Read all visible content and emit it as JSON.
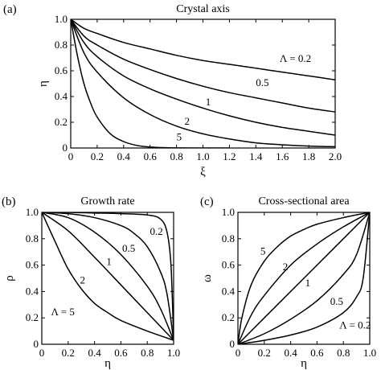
{
  "chart_data": [
    {
      "type": "line",
      "panel_label": "(a)",
      "title": "Crystal axis",
      "xlabel": "ξ",
      "ylabel": "η",
      "xlim": [
        0,
        2.0
      ],
      "ylim": [
        0,
        1.0
      ],
      "xticks": [
        "0",
        "0.2",
        "0.4",
        "0.6",
        "0.8",
        "1.0",
        "1.2",
        "1.4",
        "1.6",
        "1.8",
        "2.0"
      ],
      "yticks": [
        "0",
        "0.2",
        "0.4",
        "0.6",
        "0.8",
        "1.0"
      ],
      "series": [
        {
          "name": "Λ = 0.2",
          "x": [
            0,
            0.1,
            0.2,
            0.4,
            0.6,
            0.8,
            1.0,
            1.2,
            1.4,
            1.6,
            1.8,
            2.0
          ],
          "y": [
            1.0,
            0.93,
            0.89,
            0.82,
            0.77,
            0.72,
            0.68,
            0.65,
            0.62,
            0.59,
            0.56,
            0.53
          ]
        },
        {
          "name": "0.5",
          "x": [
            0,
            0.1,
            0.2,
            0.4,
            0.6,
            0.8,
            1.0,
            1.2,
            1.4,
            1.6,
            1.8,
            2.0
          ],
          "y": [
            1.0,
            0.87,
            0.8,
            0.69,
            0.61,
            0.54,
            0.48,
            0.43,
            0.39,
            0.35,
            0.31,
            0.28
          ]
        },
        {
          "name": "1",
          "x": [
            0,
            0.1,
            0.2,
            0.4,
            0.6,
            0.8,
            1.0,
            1.2,
            1.4,
            1.6,
            1.8,
            2.0
          ],
          "y": [
            1.0,
            0.82,
            0.71,
            0.56,
            0.46,
            0.38,
            0.31,
            0.25,
            0.2,
            0.16,
            0.13,
            0.1
          ]
        },
        {
          "name": "2",
          "x": [
            0,
            0.1,
            0.2,
            0.4,
            0.6,
            0.8,
            1.0,
            1.2,
            1.4,
            1.6,
            1.8,
            2.0
          ],
          "y": [
            1.0,
            0.74,
            0.59,
            0.39,
            0.26,
            0.17,
            0.11,
            0.07,
            0.04,
            0.025,
            0.015,
            0.01
          ]
        },
        {
          "name": "5",
          "x": [
            0,
            0.05,
            0.1,
            0.15,
            0.2,
            0.3,
            0.4,
            0.5,
            0.6,
            0.7,
            0.8,
            1.0,
            1.2
          ],
          "y": [
            1.0,
            0.72,
            0.5,
            0.35,
            0.24,
            0.11,
            0.05,
            0.02,
            0.008,
            0.003,
            0.001,
            0,
            0
          ]
        }
      ],
      "curve_labels": [
        {
          "text": "Λ = 0.2",
          "x": 1.58,
          "y": 0.67
        },
        {
          "text": "0.5",
          "x": 1.4,
          "y": 0.48
        },
        {
          "text": "1",
          "x": 1.02,
          "y": 0.33
        },
        {
          "text": "2",
          "x": 0.86,
          "y": 0.18
        },
        {
          "text": "5",
          "x": 0.8,
          "y": 0.06
        }
      ]
    },
    {
      "type": "line",
      "panel_label": "(b)",
      "title": "Growth rate",
      "xlabel": "η",
      "ylabel": "ρ",
      "xlim": [
        0,
        1.0
      ],
      "ylim": [
        0,
        1.0
      ],
      "xticks": [
        "0",
        "0.2",
        "0.4",
        "0.6",
        "0.8",
        "1.0"
      ],
      "yticks": [
        "0",
        "0.2",
        "0.4",
        "0.6",
        "0.8",
        "1.0"
      ],
      "series": [
        {
          "name": "0.2",
          "x": [
            0,
            0.2,
            0.4,
            0.6,
            0.8,
            0.9,
            0.95,
            0.98,
            1.0
          ],
          "y": [
            1.0,
            1.0,
            0.995,
            0.99,
            0.98,
            0.95,
            0.85,
            0.6,
            0.03
          ]
        },
        {
          "name": "0.5",
          "x": [
            0,
            0.2,
            0.4,
            0.6,
            0.7,
            0.8,
            0.9,
            0.95,
            1.0
          ],
          "y": [
            1.0,
            0.99,
            0.96,
            0.9,
            0.84,
            0.74,
            0.55,
            0.38,
            0.03
          ]
        },
        {
          "name": "1",
          "x": [
            0,
            0.2,
            0.4,
            0.6,
            0.8,
            0.9,
            1.0
          ],
          "y": [
            1.0,
            0.96,
            0.85,
            0.68,
            0.44,
            0.27,
            0.03
          ]
        },
        {
          "name": "2",
          "x": [
            0,
            0.2,
            0.4,
            0.6,
            0.8,
            1.0
          ],
          "y": [
            1.0,
            0.86,
            0.66,
            0.45,
            0.24,
            0.03
          ]
        },
        {
          "name": "Λ = 5",
          "x": [
            0,
            0.1,
            0.2,
            0.3,
            0.4,
            0.5,
            0.6,
            0.8,
            1.0
          ],
          "y": [
            1.0,
            0.78,
            0.57,
            0.42,
            0.31,
            0.24,
            0.18,
            0.1,
            0.03
          ]
        }
      ],
      "curve_labels": [
        {
          "text": "0.2",
          "x": 0.82,
          "y": 0.83
        },
        {
          "text": "0.5",
          "x": 0.61,
          "y": 0.7
        },
        {
          "text": "1",
          "x": 0.49,
          "y": 0.6
        },
        {
          "text": "2",
          "x": 0.29,
          "y": 0.46
        },
        {
          "text": "Λ = 5",
          "x": 0.07,
          "y": 0.22
        }
      ]
    },
    {
      "type": "line",
      "panel_label": "(c)",
      "title": "Cross-sectional area",
      "xlabel": "η",
      "ylabel": "ω",
      "xlim": [
        0,
        1.0
      ],
      "ylim": [
        0,
        1.0
      ],
      "xticks": [
        "0",
        "0.2",
        "0.4",
        "0.6",
        "0.8",
        "1.0"
      ],
      "yticks": [
        "0",
        "0.2",
        "0.4",
        "0.6",
        "0.8",
        "1.0"
      ],
      "series": [
        {
          "name": "5",
          "x": [
            0,
            0.03,
            0.1,
            0.2,
            0.3,
            0.4,
            0.5,
            0.6,
            0.8,
            1.0
          ],
          "y": [
            0,
            0.2,
            0.45,
            0.63,
            0.74,
            0.82,
            0.87,
            0.91,
            0.96,
            1.0
          ]
        },
        {
          "name": "2",
          "x": [
            0,
            0.1,
            0.2,
            0.4,
            0.6,
            0.8,
            1.0
          ],
          "y": [
            0,
            0.22,
            0.37,
            0.6,
            0.76,
            0.89,
            1.0
          ]
        },
        {
          "name": "1",
          "x": [
            0,
            0.2,
            0.4,
            0.6,
            0.8,
            1.0
          ],
          "y": [
            0,
            0.2,
            0.4,
            0.6,
            0.8,
            1.0
          ]
        },
        {
          "name": "0.5",
          "x": [
            0,
            0.2,
            0.4,
            0.6,
            0.8,
            0.9,
            1.0
          ],
          "y": [
            0,
            0.08,
            0.19,
            0.33,
            0.53,
            0.68,
            1.0
          ]
        },
        {
          "name": "Λ = 0.2",
          "x": [
            0,
            0.2,
            0.4,
            0.6,
            0.8,
            0.9,
            0.95,
            1.0
          ],
          "y": [
            0,
            0.03,
            0.07,
            0.13,
            0.24,
            0.36,
            0.5,
            1.0
          ]
        }
      ],
      "curve_labels": [
        {
          "text": "5",
          "x": 0.17,
          "y": 0.68
        },
        {
          "text": "2",
          "x": 0.34,
          "y": 0.56
        },
        {
          "text": "1",
          "x": 0.51,
          "y": 0.44
        },
        {
          "text": "0.5",
          "x": 0.7,
          "y": 0.3
        },
        {
          "text": "Λ = 0.2",
          "x": 0.77,
          "y": 0.12
        }
      ]
    }
  ]
}
